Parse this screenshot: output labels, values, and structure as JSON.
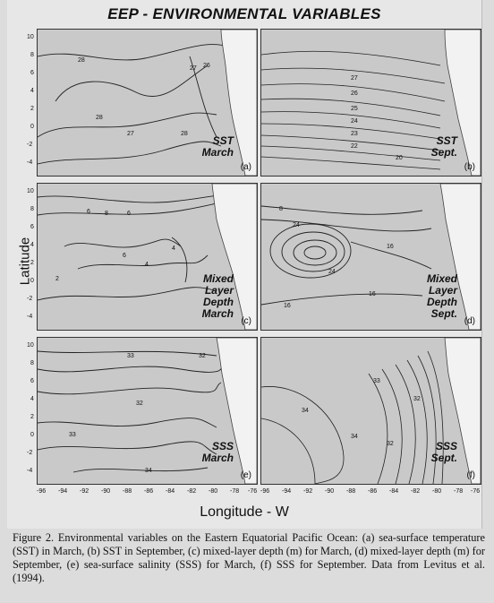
{
  "figure": {
    "title": "EEP - ENVIRONMENTAL VARIABLES",
    "y_axis_label": "Latitude",
    "x_axis_label": "Longitude - W",
    "y_ticks": [
      "10",
      "8",
      "6",
      "4",
      "2",
      "0",
      "-2",
      "-4"
    ],
    "x_ticks_left": [
      "-96",
      "-94",
      "-92",
      "-90",
      "-88",
      "-86",
      "-84",
      "-82",
      "-80",
      "-78",
      "-76"
    ],
    "x_ticks_right": [
      "-96",
      "-94",
      "-92",
      "-90",
      "-88",
      "-86",
      "-84",
      "-82",
      "-80",
      "-78",
      "-76"
    ]
  },
  "panels": [
    {
      "label_line1": "SST",
      "label_line2": "March",
      "label_line3": "",
      "letter": "(a)",
      "contour_labels": [
        "28",
        "27",
        "28",
        "28",
        "27",
        "26"
      ]
    },
    {
      "label_line1": "SST",
      "label_line2": "Sept.",
      "label_line3": "",
      "letter": "(b)",
      "contour_labels": [
        "27",
        "26",
        "25",
        "24",
        "23",
        "22",
        "20"
      ]
    },
    {
      "label_line1": "Mixed",
      "label_line2": "Layer",
      "label_line3": "Depth",
      "label_line4": "March",
      "letter": "(c)",
      "contour_labels": [
        "6",
        "8",
        "6",
        "4",
        "2",
        "6",
        "4"
      ]
    },
    {
      "label_line1": "Mixed",
      "label_line2": "Layer",
      "label_line3": "Depth",
      "label_line4": "Sept.",
      "letter": "(d)",
      "contour_labels": [
        "8",
        "24",
        "16",
        "24",
        "16",
        "16"
      ]
    },
    {
      "label_line1": "SSS",
      "label_line2": "March",
      "label_line3": "",
      "letter": "(e)",
      "contour_labels": [
        "33",
        "32",
        "32",
        "33",
        "34"
      ]
    },
    {
      "label_line1": "SSS",
      "label_line2": "Sept.",
      "label_line3": "",
      "letter": "(f)",
      "contour_labels": [
        "33",
        "32",
        "34",
        "34",
        "32"
      ]
    }
  ],
  "caption": "Figure 2. Environmental variables on the Eastern Equatorial Pacific Ocean: (a) sea-surface temperature (SST) in March, (b) SST in September, (c) mixed-layer depth (m) for March, (d) mixed-layer depth (m) for September, (e) sea-surface salinity (SSS) for March, (f) SSS for September. Data from Levitus et al. (1994)."
}
